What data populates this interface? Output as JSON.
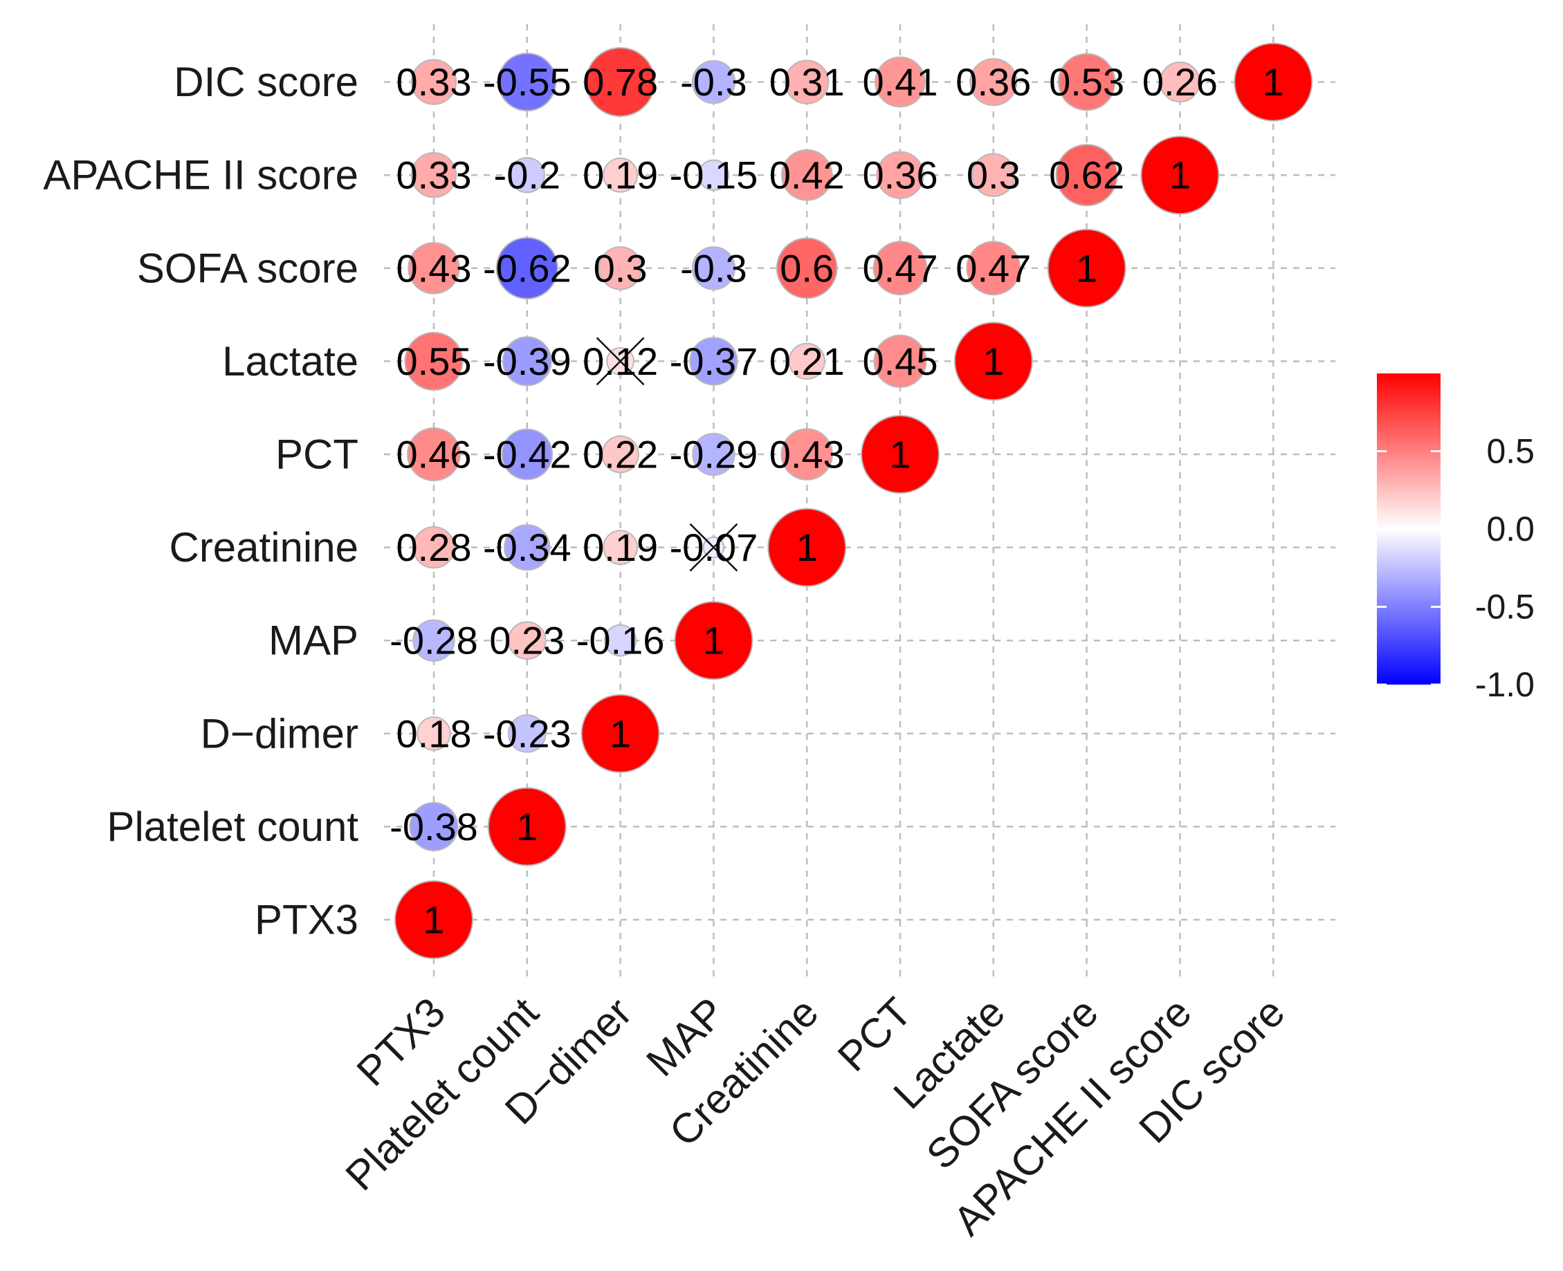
{
  "chart_data": {
    "type": "heatmap",
    "variables": [
      "PTX3",
      "Platelet count",
      "D−dimer",
      "MAP",
      "Creatinine",
      "PCT",
      "Lactate",
      "SOFA score",
      "APACHE II score",
      "DIC score"
    ],
    "cells": [
      {
        "row": "Platelet count",
        "col": "PTX3",
        "value": -0.38,
        "label": "-0.38"
      },
      {
        "row": "D−dimer",
        "col": "PTX3",
        "value": 0.18,
        "label": "0.18"
      },
      {
        "row": "D−dimer",
        "col": "Platelet count",
        "value": -0.23,
        "label": "-0.23"
      },
      {
        "row": "MAP",
        "col": "PTX3",
        "value": -0.28,
        "label": "-0.28"
      },
      {
        "row": "MAP",
        "col": "Platelet count",
        "value": 0.23,
        "label": "0.23"
      },
      {
        "row": "MAP",
        "col": "D−dimer",
        "value": -0.16,
        "label": "-0.16"
      },
      {
        "row": "Creatinine",
        "col": "PTX3",
        "value": 0.28,
        "label": "0.28"
      },
      {
        "row": "Creatinine",
        "col": "Platelet count",
        "value": -0.34,
        "label": "-0.34"
      },
      {
        "row": "Creatinine",
        "col": "D−dimer",
        "value": 0.19,
        "label": "0.19"
      },
      {
        "row": "Creatinine",
        "col": "MAP",
        "value": -0.07,
        "label": "-0.07",
        "crossed": true
      },
      {
        "row": "PCT",
        "col": "PTX3",
        "value": 0.46,
        "label": "0.46"
      },
      {
        "row": "PCT",
        "col": "Platelet count",
        "value": -0.42,
        "label": "-0.42"
      },
      {
        "row": "PCT",
        "col": "D−dimer",
        "value": 0.22,
        "label": "0.22"
      },
      {
        "row": "PCT",
        "col": "MAP",
        "value": -0.29,
        "label": "-0.29"
      },
      {
        "row": "PCT",
        "col": "Creatinine",
        "value": 0.43,
        "label": "0.43"
      },
      {
        "row": "Lactate",
        "col": "PTX3",
        "value": 0.55,
        "label": "0.55"
      },
      {
        "row": "Lactate",
        "col": "Platelet count",
        "value": -0.39,
        "label": "-0.39"
      },
      {
        "row": "Lactate",
        "col": "D−dimer",
        "value": 0.12,
        "label": "0.12",
        "crossed": true
      },
      {
        "row": "Lactate",
        "col": "MAP",
        "value": -0.37,
        "label": "-0.37"
      },
      {
        "row": "Lactate",
        "col": "Creatinine",
        "value": 0.21,
        "label": "0.21"
      },
      {
        "row": "Lactate",
        "col": "PCT",
        "value": 0.45,
        "label": "0.45"
      },
      {
        "row": "SOFA score",
        "col": "PTX3",
        "value": 0.43,
        "label": "0.43"
      },
      {
        "row": "SOFA score",
        "col": "Platelet count",
        "value": -0.62,
        "label": "-0.62"
      },
      {
        "row": "SOFA score",
        "col": "D−dimer",
        "value": 0.3,
        "label": "0.3"
      },
      {
        "row": "SOFA score",
        "col": "MAP",
        "value": -0.3,
        "label": "-0.3"
      },
      {
        "row": "SOFA score",
        "col": "Creatinine",
        "value": 0.6,
        "label": "0.6"
      },
      {
        "row": "SOFA score",
        "col": "PCT",
        "value": 0.47,
        "label": "0.47"
      },
      {
        "row": "SOFA score",
        "col": "Lactate",
        "value": 0.47,
        "label": "0.47"
      },
      {
        "row": "APACHE II score",
        "col": "PTX3",
        "value": 0.33,
        "label": "0.33"
      },
      {
        "row": "APACHE II score",
        "col": "Platelet count",
        "value": -0.2,
        "label": "-0.2"
      },
      {
        "row": "APACHE II score",
        "col": "D−dimer",
        "value": 0.19,
        "label": "0.19"
      },
      {
        "row": "APACHE II score",
        "col": "MAP",
        "value": -0.15,
        "label": "-0.15"
      },
      {
        "row": "APACHE II score",
        "col": "Creatinine",
        "value": 0.42,
        "label": "0.42"
      },
      {
        "row": "APACHE II score",
        "col": "PCT",
        "value": 0.36,
        "label": "0.36"
      },
      {
        "row": "APACHE II score",
        "col": "Lactate",
        "value": 0.3,
        "label": "0.3"
      },
      {
        "row": "APACHE II score",
        "col": "SOFA score",
        "value": 0.62,
        "label": "0.62"
      },
      {
        "row": "DIC score",
        "col": "PTX3",
        "value": 0.33,
        "label": "0.33"
      },
      {
        "row": "DIC score",
        "col": "Platelet count",
        "value": -0.55,
        "label": "-0.55"
      },
      {
        "row": "DIC score",
        "col": "D−dimer",
        "value": 0.78,
        "label": "0.78"
      },
      {
        "row": "DIC score",
        "col": "MAP",
        "value": -0.3,
        "label": "-0.3"
      },
      {
        "row": "DIC score",
        "col": "Creatinine",
        "value": 0.31,
        "label": "0.31"
      },
      {
        "row": "DIC score",
        "col": "PCT",
        "value": 0.41,
        "label": "0.41"
      },
      {
        "row": "DIC score",
        "col": "Lactate",
        "value": 0.36,
        "label": "0.36"
      },
      {
        "row": "DIC score",
        "col": "SOFA score",
        "value": 0.53,
        "label": "0.53"
      },
      {
        "row": "DIC score",
        "col": "APACHE II score",
        "value": 0.26,
        "label": "0.26"
      }
    ],
    "diagonal_label": "1",
    "colorscale": {
      "low": "#0000FF",
      "mid": "#FFFFFF",
      "high": "#FF0000",
      "range": [
        -1,
        1
      ]
    },
    "legend": {
      "position": "right",
      "ticks": [
        {
          "value": 0.5,
          "label": "0.5"
        },
        {
          "value": 0.0,
          "label": "0.0"
        },
        {
          "value": -0.5,
          "label": "-0.5"
        },
        {
          "value": -1.0,
          "label": "-1.0"
        }
      ]
    },
    "title": "",
    "xlabel": "",
    "ylabel": ""
  }
}
